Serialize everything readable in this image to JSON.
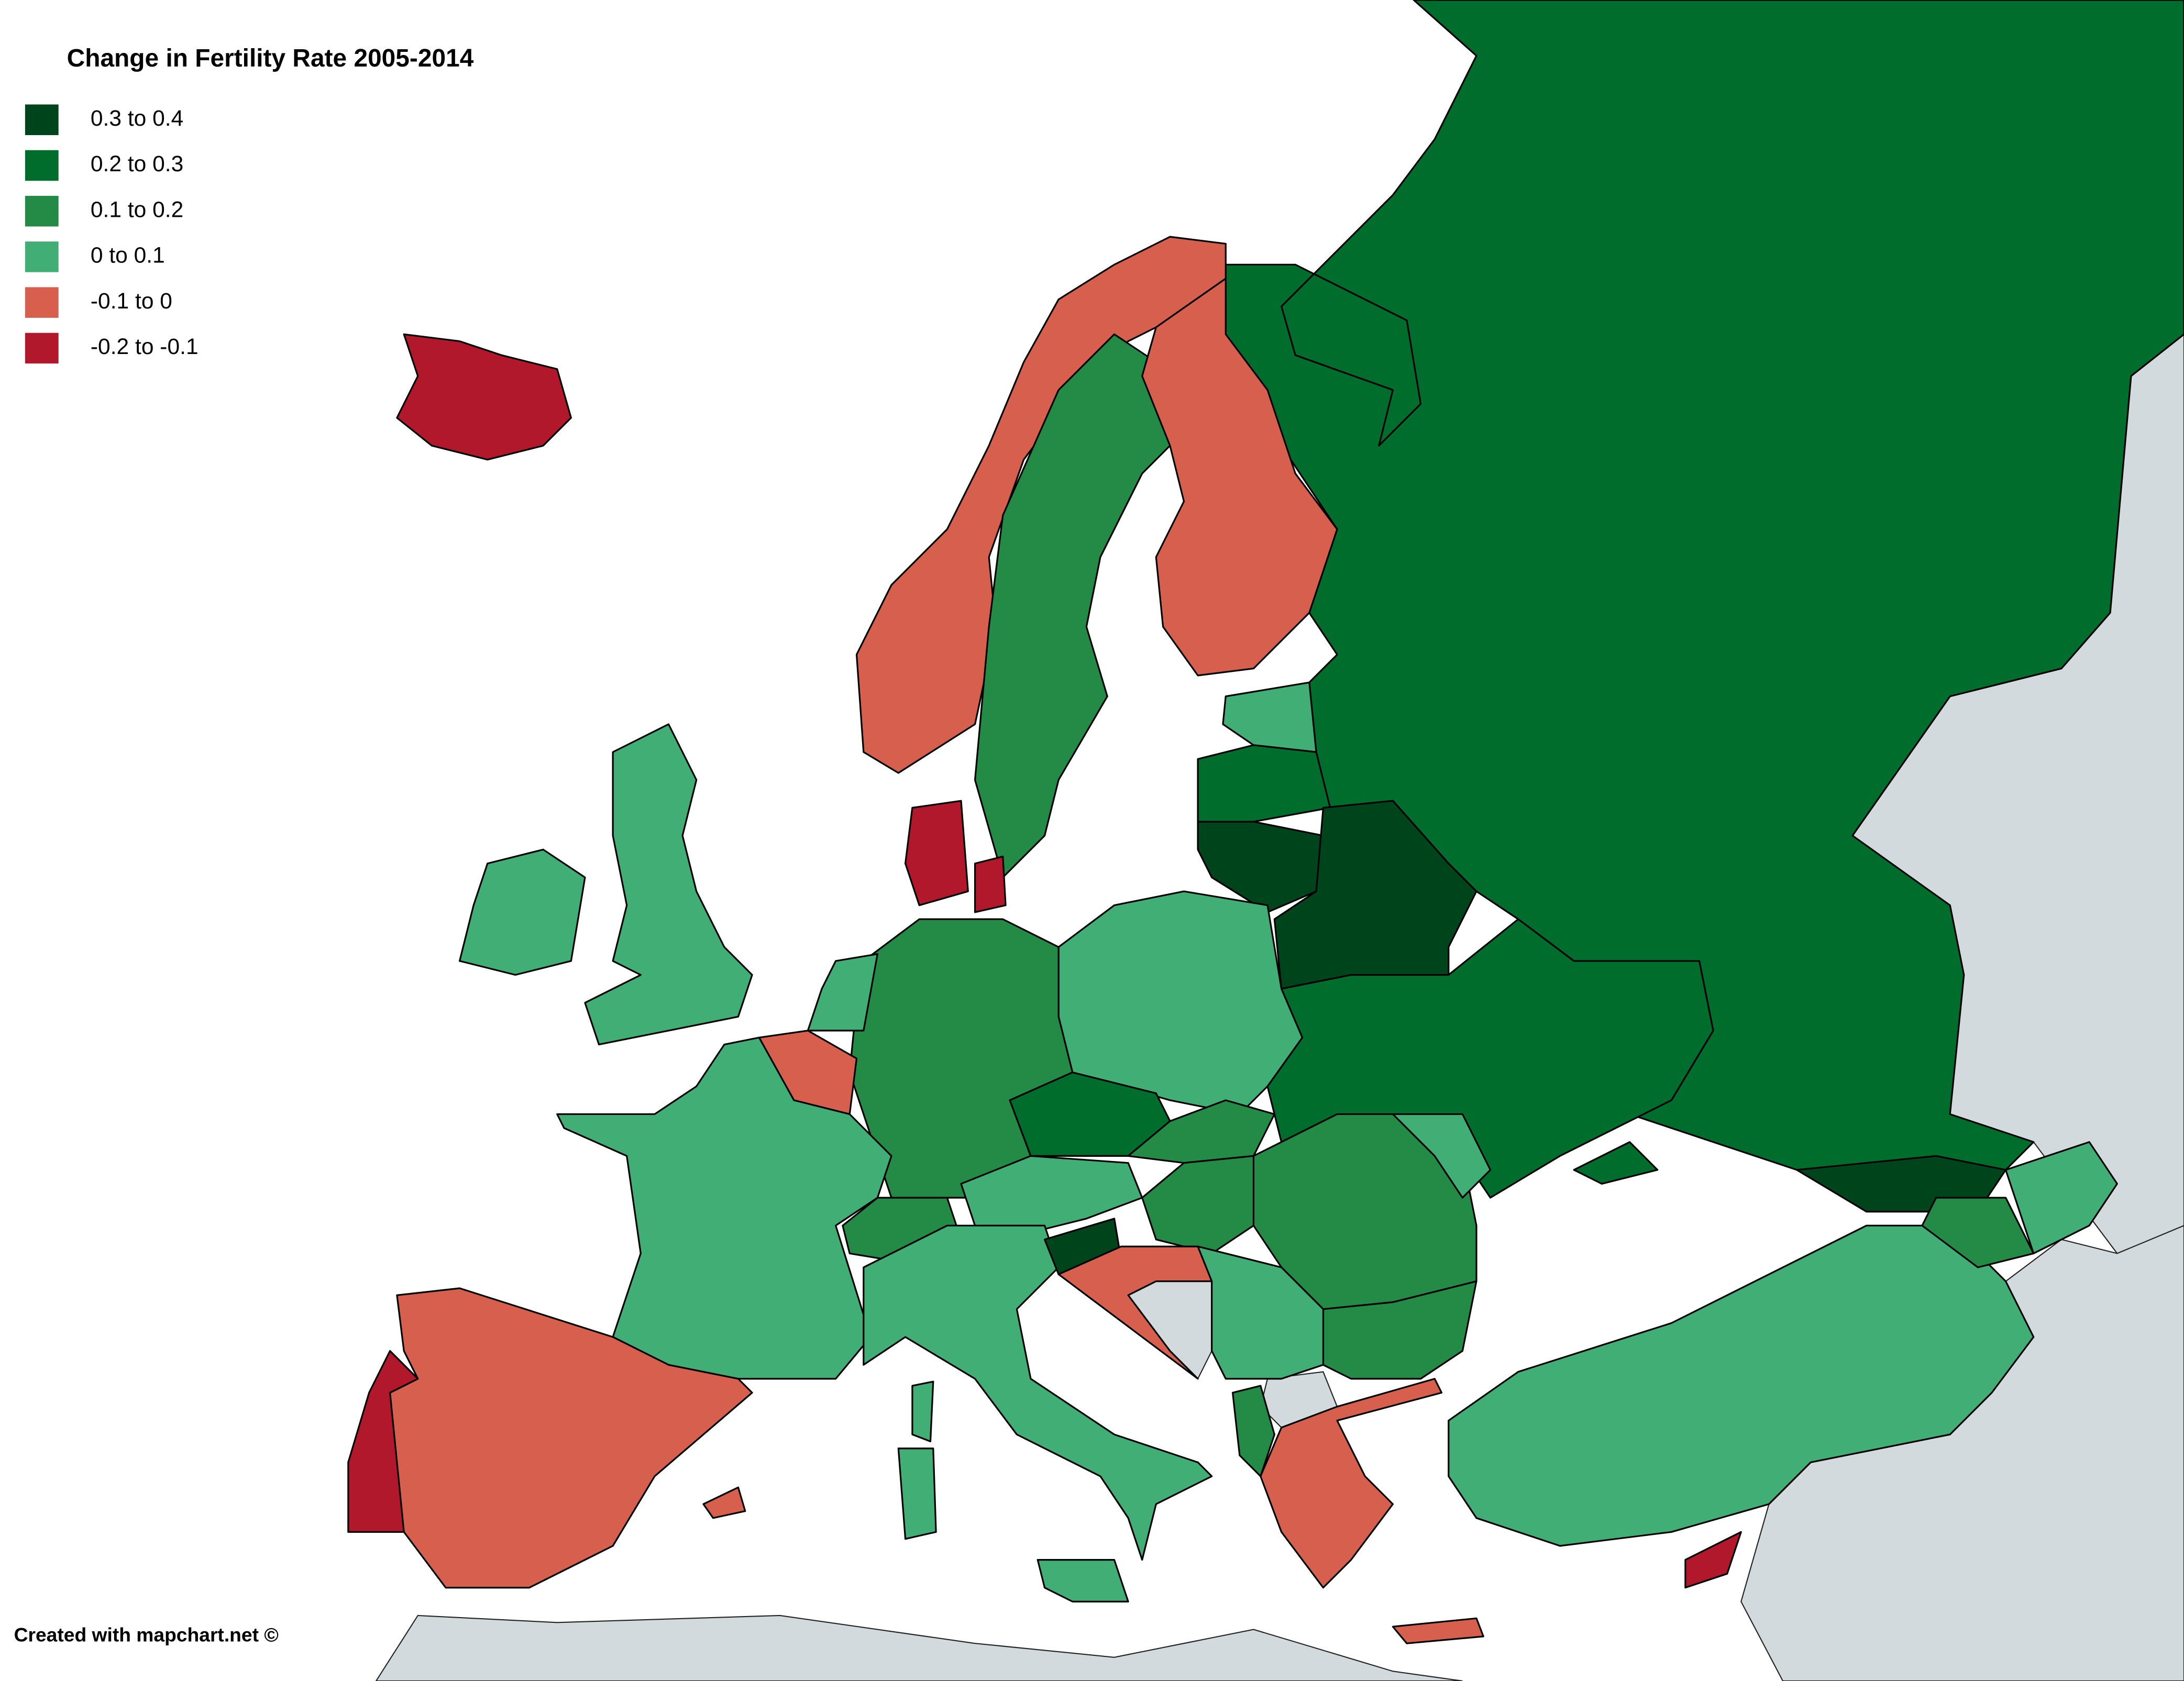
{
  "title": "Change in Fertility Rate 2005-2014",
  "legend": [
    {
      "label": "0.3 to 0.4",
      "color": "#00441b"
    },
    {
      "label": "0.2 to 0.3",
      "color": "#006d2c"
    },
    {
      "label": "0.1 to 0.2",
      "color": "#238b45"
    },
    {
      "label": "0 to 0.1",
      "color": "#41ae76"
    },
    {
      "label": "-0.1 to 0",
      "color": "#d6604d"
    },
    {
      "label": "-0.2 to -0.1",
      "color": "#b2182b"
    }
  ],
  "credit": "Created with mapchart.net ©"
}
